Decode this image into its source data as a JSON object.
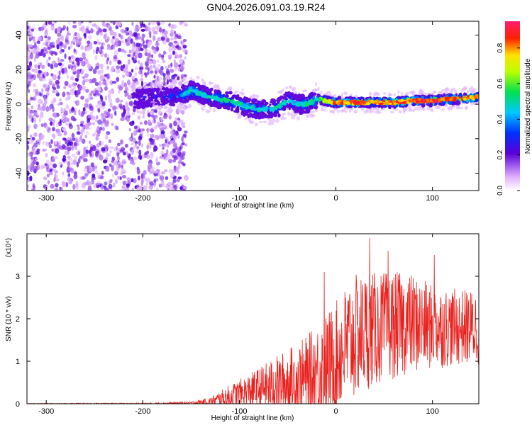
{
  "figure_title": "GN04.2026.091.03.19.R24",
  "colors": {
    "snr_line": "#e8221e",
    "scatter_dark": "#5a00d8",
    "frame": "#000000"
  },
  "chart_data": [
    {
      "type": "heatmap",
      "title": "GN04.2026.091.03.19.R24",
      "xlabel": "Height of straight line (km)",
      "ylabel": "Frequency (Hz)",
      "xlim": [
        -320,
        148
      ],
      "ylim": [
        -50,
        48
      ],
      "x_ticks": [
        -300,
        -200,
        -100,
        0,
        100
      ],
      "y_ticks": [
        -40,
        -20,
        0,
        20,
        40
      ],
      "colorbar": {
        "label": "Normalized spectral amplitude",
        "range": [
          0.0,
          0.95
        ],
        "ticks": [
          0.0,
          0.2,
          0.4,
          0.6,
          0.8
        ]
      },
      "noise_region_x": [
        -320,
        -155
      ],
      "ridge": {
        "x": [
          -210,
          -180,
          -160,
          -150,
          -140,
          -130,
          -120,
          -110,
          -100,
          -90,
          -80,
          -70,
          -60,
          -50,
          -40,
          -30,
          -20,
          -10,
          0,
          20,
          40,
          60,
          80,
          100,
          120,
          148
        ],
        "freq_hz": [
          3,
          4,
          5,
          8,
          6,
          4,
          3,
          2,
          0,
          -2,
          -3,
          -3,
          -2,
          2,
          0,
          0,
          3,
          2,
          1,
          1,
          1,
          1,
          2,
          2,
          3,
          4
        ],
        "peak_amplitude": [
          0.3,
          0.35,
          0.45,
          0.55,
          0.5,
          0.5,
          0.55,
          0.6,
          0.55,
          0.5,
          0.55,
          0.5,
          0.55,
          0.5,
          0.5,
          0.55,
          0.6,
          0.75,
          0.9,
          0.92,
          0.9,
          0.92,
          0.9,
          0.95,
          0.9,
          0.85
        ]
      }
    },
    {
      "type": "line",
      "series_name": "SNR",
      "xlabel": "Height of straight line (km)",
      "ylabel": "SNR (10 * v/v)",
      "y_scale_label": "(x10⁴)",
      "xlim": [
        -320,
        148
      ],
      "ylim": [
        0,
        4
      ],
      "x_ticks": [
        -300,
        -200,
        -100,
        0,
        100
      ],
      "y_ticks": [
        0,
        1,
        2,
        3
      ],
      "envelope": {
        "x": [
          -320,
          -200,
          -150,
          -130,
          -110,
          -90,
          -70,
          -50,
          -30,
          -15,
          0,
          15,
          30,
          50,
          75,
          100,
          125,
          148
        ],
        "baseline": [
          0.0,
          0.0,
          0.02,
          0.05,
          0.15,
          0.3,
          0.4,
          0.5,
          0.6,
          0.8,
          1.1,
          1.5,
          1.7,
          1.8,
          1.9,
          1.8,
          1.8,
          1.8
        ],
        "amplitude": [
          0.01,
          0.02,
          0.03,
          0.1,
          0.3,
          0.4,
          0.6,
          0.8,
          1.0,
          1.2,
          1.3,
          1.5,
          1.4,
          1.3,
          1.2,
          1.0,
          0.9,
          0.9
        ]
      },
      "peaks": [
        {
          "x": -12,
          "y": 3.1
        },
        {
          "x": 35,
          "y": 3.9
        },
        {
          "x": 54,
          "y": 3.6
        },
        {
          "x": 102,
          "y": 3.5
        }
      ]
    }
  ]
}
